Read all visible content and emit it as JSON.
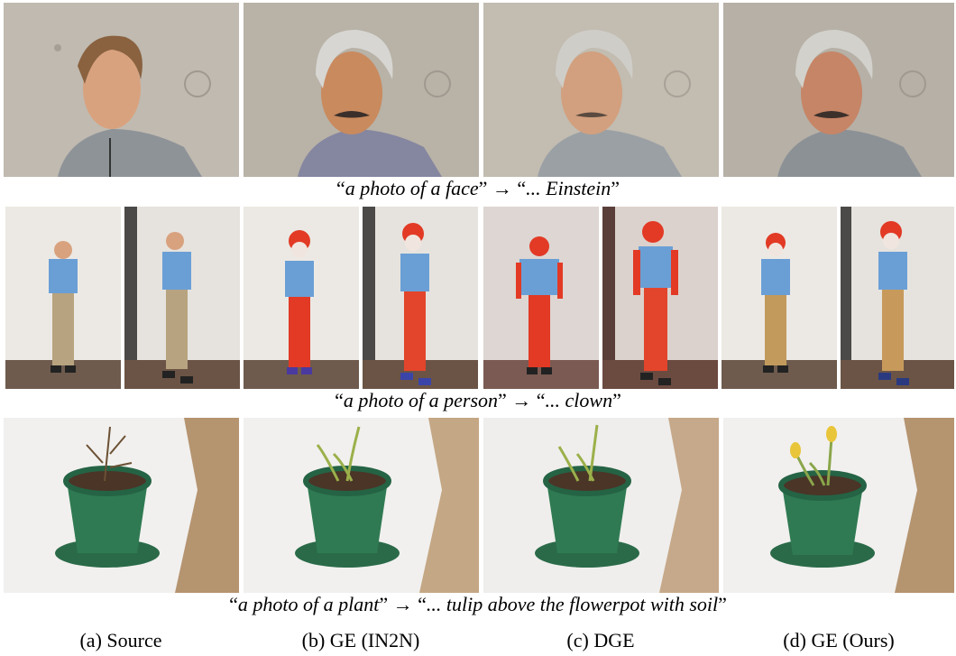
{
  "captions": {
    "row1": {
      "src": "a photo of a face",
      "tgt": "... Einstein"
    },
    "row2": {
      "src": "a photo of a person",
      "tgt": "... clown"
    },
    "row3": {
      "src": "a photo of a plant",
      "tgt": "... tulip above the flowerpot with soil"
    },
    "arrow": "→",
    "open_quote": "“",
    "close_quote": "”"
  },
  "column_labels": [
    "(a) Source",
    "(b) GE (IN2N)",
    "(c) DGE",
    "(d) GE (Ours)"
  ],
  "colors": {
    "concrete": "#bdb7ad",
    "skin": "#d9a27e",
    "sweater": "#8d9296",
    "shirt": "#6a9fd6",
    "khaki": "#b7a37f",
    "clown_red": "#e23a25",
    "wall": "#ece9e4",
    "floor": "#6e5b4d",
    "pot_green": "#2f7a52",
    "soil": "#4a3527",
    "table": "#f1f0ee",
    "wood": "#b59470"
  }
}
